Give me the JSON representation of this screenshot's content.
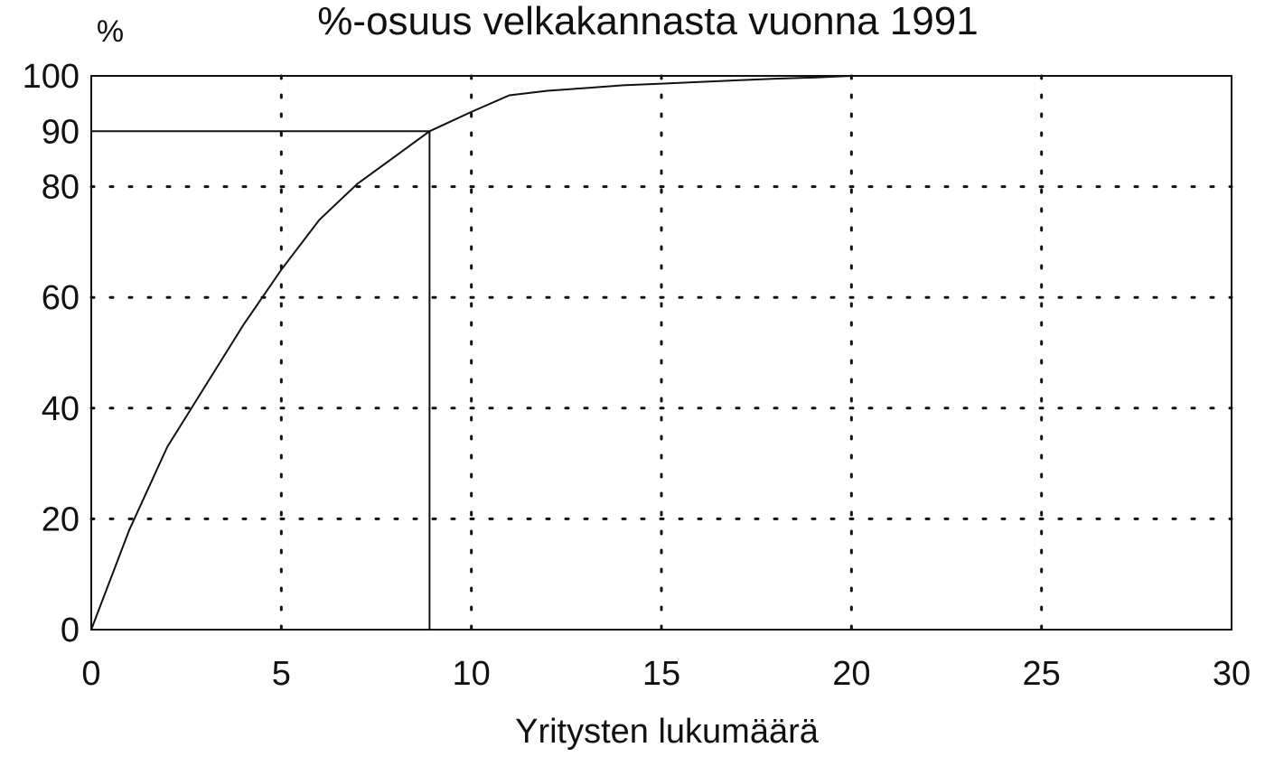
{
  "chart_data": {
    "type": "line",
    "title": "%-osuus velkakannasta vuonna 1991",
    "y_label": "%",
    "x_label": "Yritysten lukumäärä",
    "x": [
      0,
      1,
      2,
      3,
      4,
      5,
      6,
      7,
      8,
      8.9,
      10,
      11,
      12,
      13,
      14,
      15,
      16,
      17,
      18,
      19,
      20
    ],
    "series": [
      {
        "color": "#111111",
        "values": [
          0,
          18,
          33,
          44,
          55,
          65,
          74,
          80.5,
          85.5,
          90,
          93.5,
          96.5,
          97.3,
          97.8,
          98.3,
          98.6,
          98.9,
          99.2,
          99.5,
          99.7,
          100
        ]
      }
    ],
    "reference": {
      "x": 8.9,
      "y": 90
    },
    "xlim": [
      0,
      30
    ],
    "xticks": [
      0,
      5,
      10,
      15,
      20,
      25,
      30
    ],
    "ylim": [
      0,
      100
    ],
    "yticks": [
      0,
      20,
      40,
      60,
      80,
      90,
      100
    ],
    "grid": true
  }
}
